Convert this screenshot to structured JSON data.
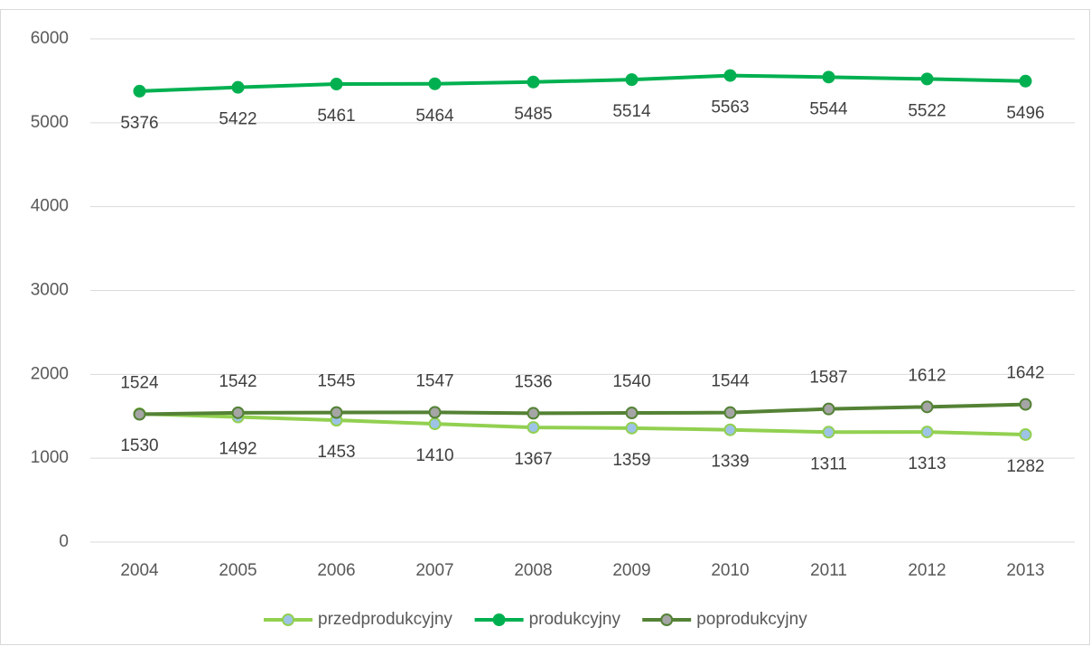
{
  "chart_data": {
    "type": "line",
    "categories": [
      "2004",
      "2005",
      "2006",
      "2007",
      "2008",
      "2009",
      "2010",
      "2011",
      "2012",
      "2013"
    ],
    "series": [
      {
        "name": "przedprodukcyjny",
        "color": "#92d050",
        "marker_color": "#9dc3e6",
        "label_position": "below",
        "values": [
          1530,
          1492,
          1453,
          1410,
          1367,
          1359,
          1339,
          1311,
          1313,
          1282
        ]
      },
      {
        "name": "produkcyjny",
        "color": "#00b050",
        "marker_color": "#00b050",
        "label_position": "below",
        "values": [
          5376,
          5422,
          5461,
          5464,
          5485,
          5514,
          5563,
          5544,
          5522,
          5496
        ]
      },
      {
        "name": "poprodukcyjny",
        "color": "#548235",
        "marker_color": "#a5a5a5",
        "label_position": "above",
        "values": [
          1524,
          1542,
          1545,
          1547,
          1536,
          1540,
          1544,
          1587,
          1612,
          1642
        ]
      }
    ],
    "ylim": [
      0,
      6000
    ],
    "yticks": [
      0,
      1000,
      2000,
      3000,
      4000,
      5000,
      6000
    ],
    "grid": true,
    "legend": "bottom"
  }
}
